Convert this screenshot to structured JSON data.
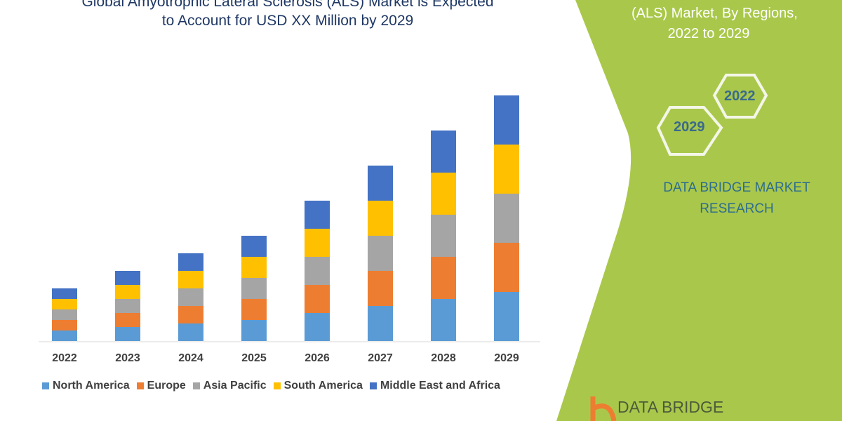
{
  "title_lines": [
    "Global Amyotrophic Lateral Sclerosis (ALS) Market is Expected",
    "to Account for USD XX Million by 2029"
  ],
  "side_panel": {
    "title_lines": [
      "(ALS) Market, By Regions,",
      "2022 to 2029"
    ],
    "hex_labels": [
      "2022",
      "2029"
    ],
    "brand_lines": [
      "DATA BRIDGE MARKET",
      "RESEARCH"
    ],
    "logo_text": "DATA BRIDGE",
    "panel_color": "#a9c84b"
  },
  "chart_data": {
    "type": "bar",
    "stacked": true,
    "categories": [
      "2022",
      "2023",
      "2024",
      "2025",
      "2026",
      "2027",
      "2028",
      "2029"
    ],
    "series": [
      {
        "name": "North America",
        "color": "#5b9bd5",
        "values": [
          15,
          20,
          25,
          30,
          40,
          50,
          60,
          70
        ]
      },
      {
        "name": "Europe",
        "color": "#ed7d31",
        "values": [
          15,
          20,
          25,
          30,
          40,
          50,
          60,
          70
        ]
      },
      {
        "name": "Asia Pacific",
        "color": "#a5a5a5",
        "values": [
          15,
          20,
          25,
          30,
          40,
          50,
          60,
          70
        ]
      },
      {
        "name": "South America",
        "color": "#ffc000",
        "values": [
          15,
          20,
          25,
          30,
          40,
          50,
          60,
          70
        ]
      },
      {
        "name": "Middle East and Africa",
        "color": "#4472c4",
        "values": [
          15,
          20,
          25,
          30,
          40,
          50,
          60,
          70
        ]
      }
    ],
    "grid": false,
    "legend_position": "bottom"
  }
}
